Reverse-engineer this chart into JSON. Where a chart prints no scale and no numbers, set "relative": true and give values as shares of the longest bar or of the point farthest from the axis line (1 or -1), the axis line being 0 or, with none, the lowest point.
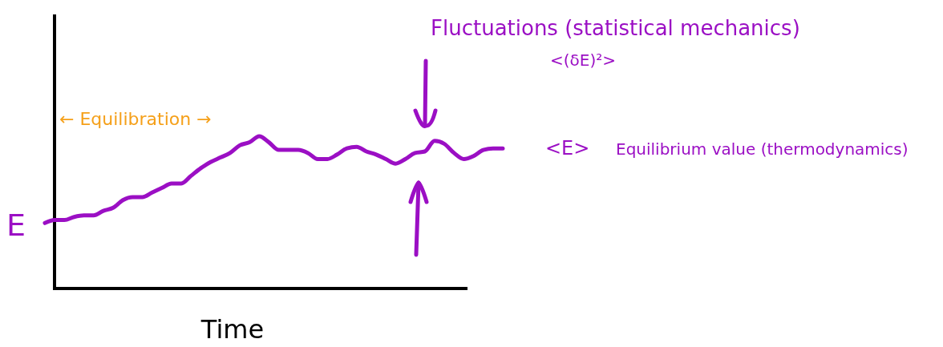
{
  "chart_data": {
    "type": "line",
    "relative": true,
    "xlabel": "Time",
    "ylabel": "E",
    "categories": [
      null,
      null,
      null,
      null,
      null,
      null,
      null,
      null,
      null,
      null,
      null,
      null,
      null,
      null,
      null,
      null,
      null,
      null,
      null,
      null,
      null,
      null,
      null,
      null,
      null,
      null,
      null,
      null,
      null,
      null,
      null,
      null,
      null,
      null,
      null,
      null,
      null,
      null,
      null,
      null,
      null,
      null,
      null,
      null,
      null,
      null,
      null,
      null
    ],
    "series": [
      {
        "color": "#9b0fc4",
        "values": [
          0.43,
          0.45,
          0.45,
          0.47,
          0.48,
          0.48,
          0.51,
          0.53,
          0.58,
          0.6,
          0.6,
          0.63,
          0.66,
          0.69,
          0.69,
          0.74,
          0.79,
          0.83,
          0.86,
          0.89,
          0.94,
          0.96,
          1,
          0.96,
          0.91,
          0.91,
          0.91,
          0.89,
          0.85,
          0.85,
          0.88,
          0.92,
          0.93,
          0.9,
          0.88,
          0.85,
          0.82,
          0.85,
          0.89,
          0.9,
          0.97,
          0.95,
          0.89,
          0.85,
          0.87,
          0.91,
          0.92,
          0.92
        ]
      }
    ],
    "annotations": [
      "← Equilibration →",
      "Fluctuations (statistical mechanics)",
      "<(δE)²>",
      "<E>",
      "Equilibrium value (thermodynamics)"
    ],
    "line_style": "solid",
    "marker": "none"
  }
}
